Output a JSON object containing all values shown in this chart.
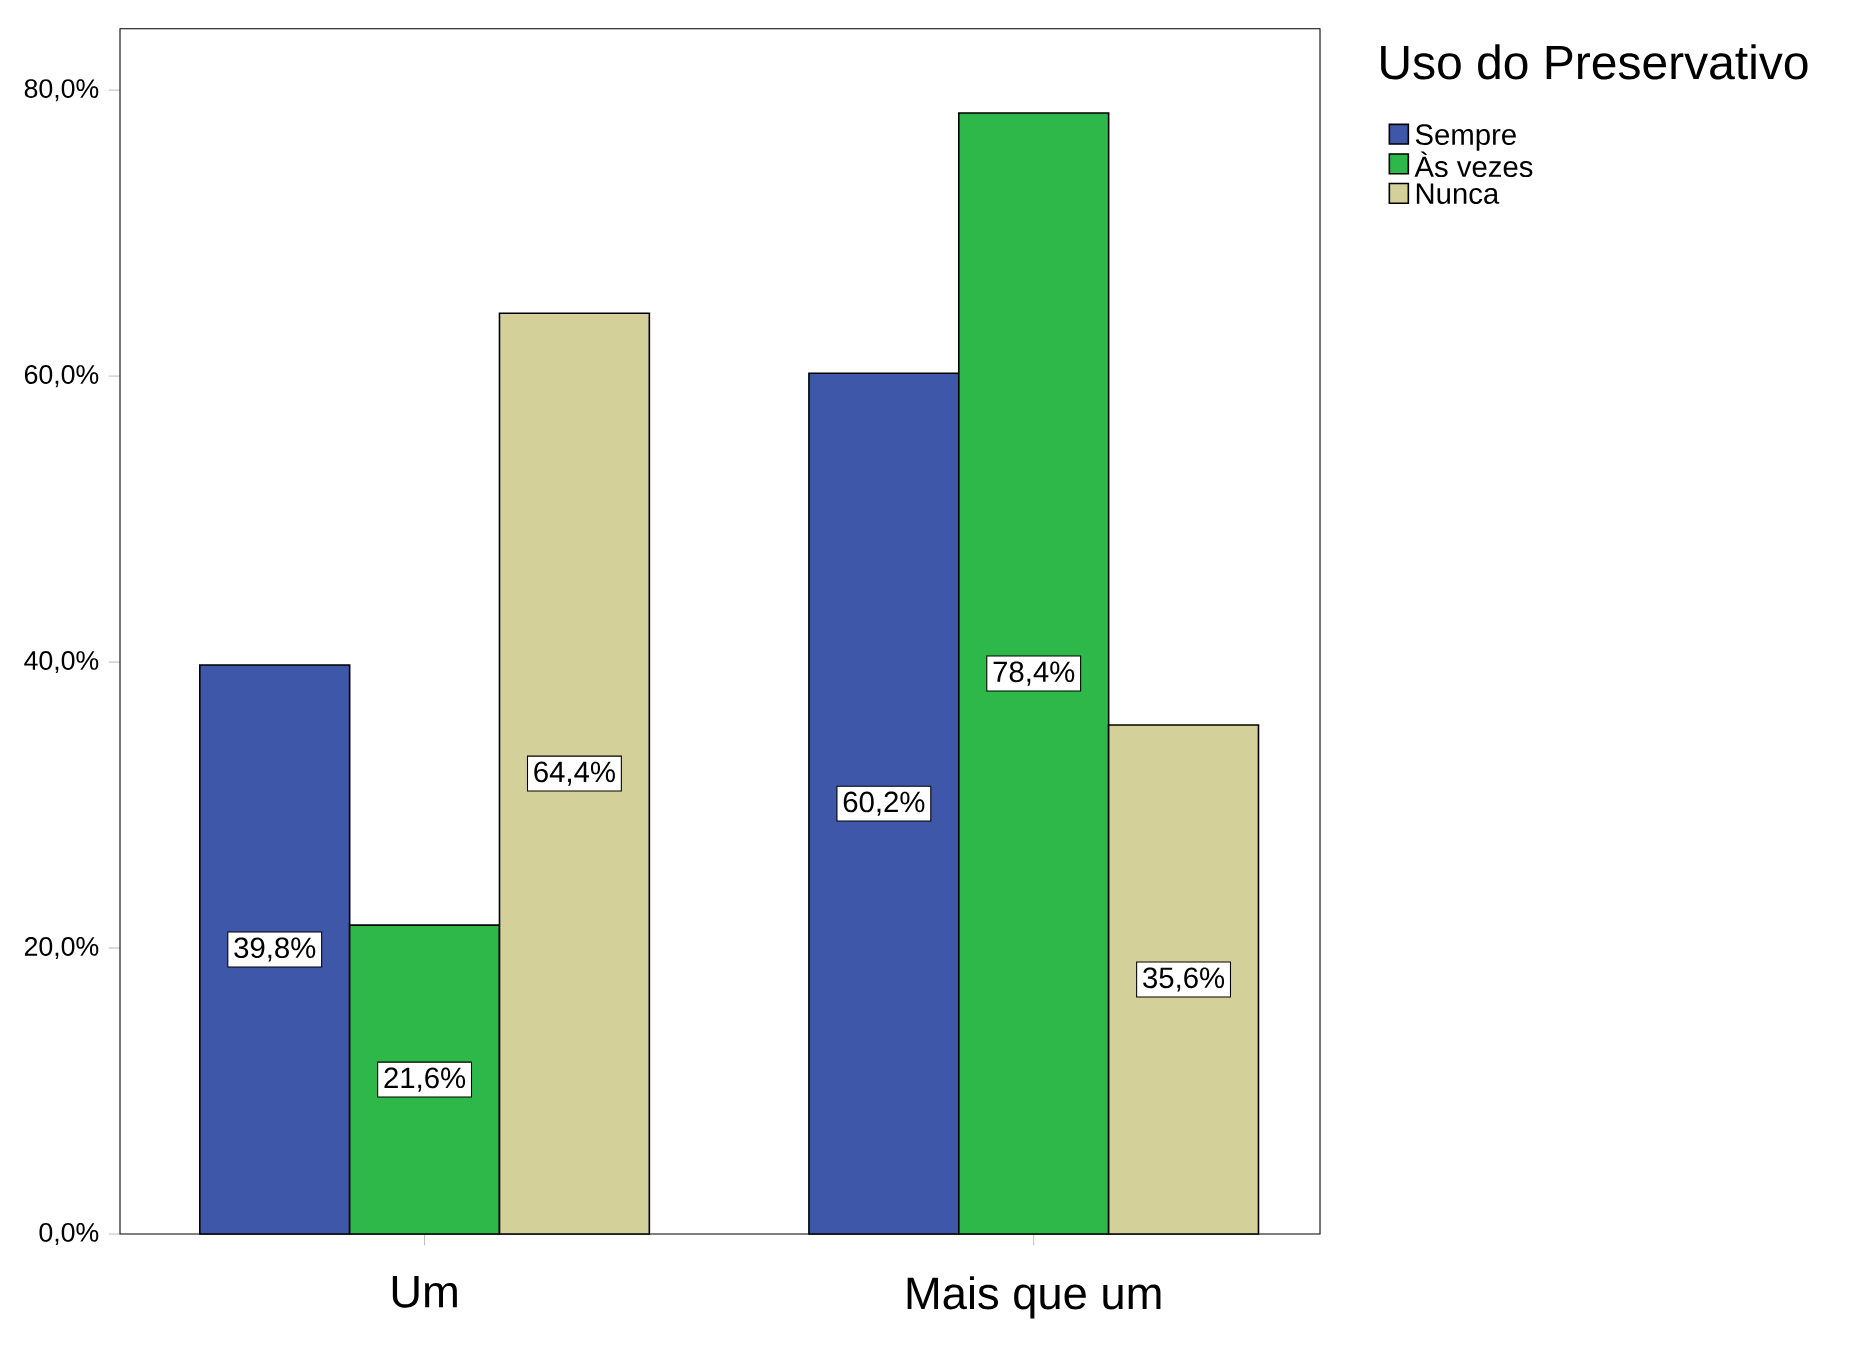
{
  "chart_data": {
    "type": "bar",
    "legend_title": "Uso do Preservativo",
    "categories": [
      "Um",
      "Mais que um"
    ],
    "series": [
      {
        "name": "Sempre",
        "color": "#3f57a8",
        "values": [
          39.8,
          60.2
        ],
        "value_labels": [
          "39,8%",
          "60,2%"
        ]
      },
      {
        "name": "Às vezes",
        "color": "#2fb84a",
        "values": [
          21.6,
          78.4
        ],
        "value_labels": [
          "21,6%",
          "78,4%"
        ]
      },
      {
        "name": "Nunca",
        "color": "#d4d09a",
        "values": [
          64.4,
          35.6
        ],
        "value_labels": [
          "64,4%",
          "35,6%"
        ]
      }
    ],
    "ylim": [
      0,
      84.3
    ],
    "yticks": [
      {
        "value": 0,
        "label": "0,0%"
      },
      {
        "value": 20,
        "label": "20,0%"
      },
      {
        "value": 40,
        "label": "40,0%"
      },
      {
        "value": 60,
        "label": "60,0%"
      },
      {
        "value": 80,
        "label": "80,0%"
      }
    ],
    "grid": false,
    "legend": "right"
  }
}
